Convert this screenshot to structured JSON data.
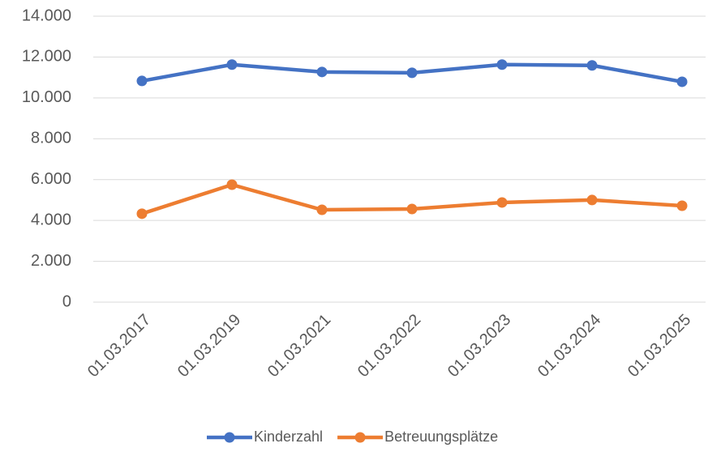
{
  "chart_data": {
    "type": "line",
    "categories": [
      "01.03.2017",
      "01.03.2019",
      "01.03.2021",
      "01.03.2022",
      "01.03.2023",
      "01.03.2024",
      "01.03.2025"
    ],
    "series": [
      {
        "name": "Kinderzahl",
        "color": "#4472c4",
        "values": [
          10830,
          11630,
          11270,
          11230,
          11630,
          11590,
          10790
        ]
      },
      {
        "name": "Betreuungsplätze",
        "color": "#ed7d31",
        "values": [
          4330,
          5750,
          4520,
          4560,
          4880,
          5000,
          4720
        ]
      }
    ],
    "ylim": [
      0,
      14000
    ],
    "yticks": [
      0,
      {
        "value": 2000,
        "label": "2.000"
      },
      {
        "value": 4000,
        "label": "4.000"
      },
      {
        "value": 6000,
        "label": "6.000"
      },
      {
        "value": 8000,
        "label": "8.000"
      },
      {
        "value": 10000,
        "label": "10.000"
      },
      {
        "value": 12000,
        "label": "12.000"
      },
      {
        "value": 14000,
        "label": "14.000"
      }
    ],
    "grid": true,
    "legend": "bottom"
  }
}
